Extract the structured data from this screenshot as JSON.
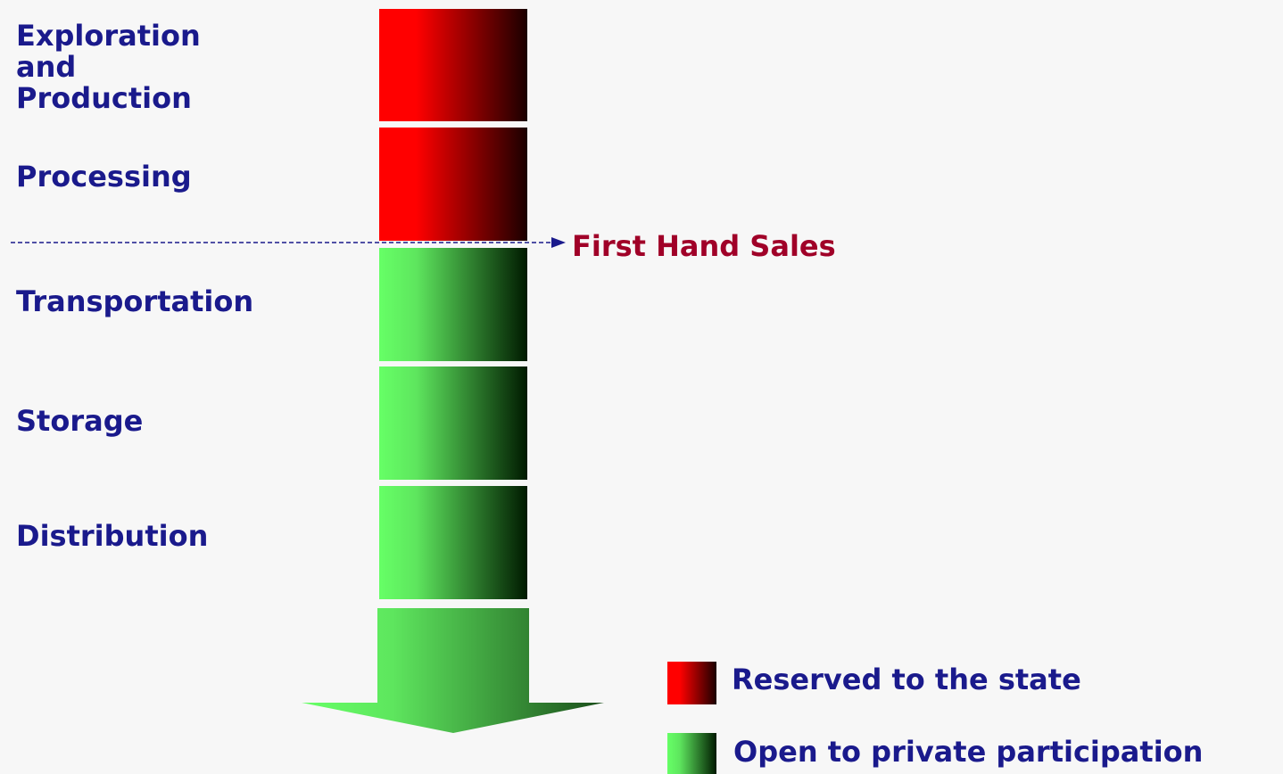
{
  "stages": [
    "Exploration\nand\nProduction",
    "Processing",
    "Transportation",
    "Storage",
    "Distribution"
  ],
  "annotation": "First Hand Sales",
  "legend": [
    "Reserved to the state",
    "Open to private participation"
  ]
}
